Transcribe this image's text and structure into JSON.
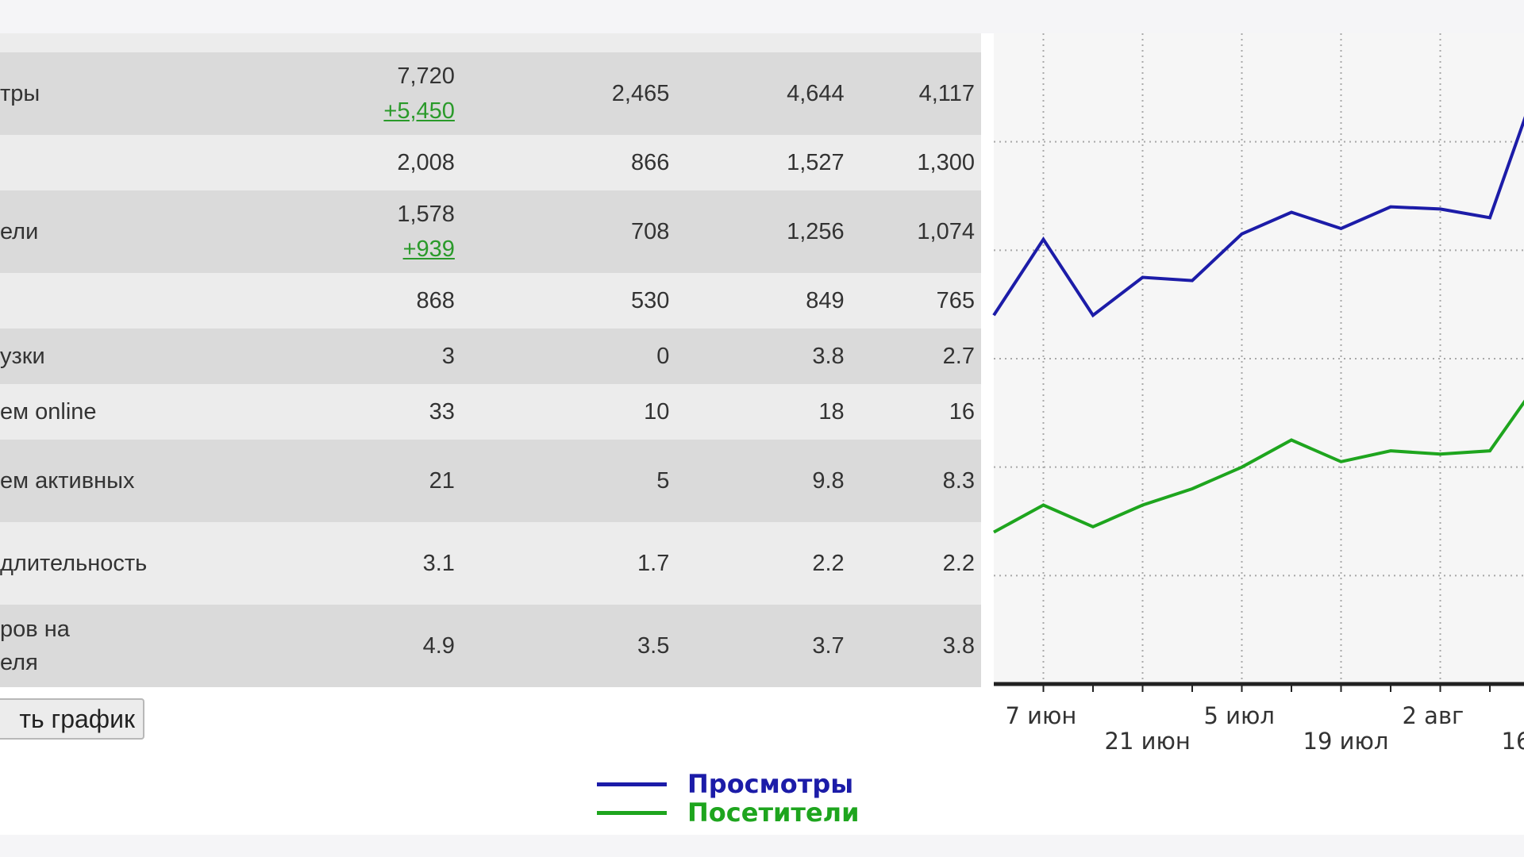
{
  "table": {
    "rows": [
      {
        "label": "тры",
        "v1": "7,720",
        "v1_delta": "+5,450",
        "v2": "2,465",
        "v3": "4,644",
        "v4": "4,117",
        "shade": "dark"
      },
      {
        "label": "",
        "v1": "2,008",
        "v1_delta": "",
        "v2": "866",
        "v3": "1,527",
        "v4": "1,300",
        "shade": "light"
      },
      {
        "label": "ели",
        "v1": "1,578",
        "v1_delta": "+939",
        "v2": "708",
        "v3": "1,256",
        "v4": "1,074",
        "shade": "dark"
      },
      {
        "label": "",
        "v1": "868",
        "v1_delta": "",
        "v2": "530",
        "v3": "849",
        "v4": "765",
        "shade": "light"
      },
      {
        "label": "узки",
        "v1": "3",
        "v1_delta": "",
        "v2": "0",
        "v3": "3.8",
        "v4": "2.7",
        "shade": "dark"
      },
      {
        "label": "ем online",
        "v1": "33",
        "v1_delta": "",
        "v2": "10",
        "v3": "18",
        "v4": "16",
        "shade": "light"
      },
      {
        "label": "ем активных",
        "v1": "21",
        "v1_delta": "",
        "v2": "5",
        "v3": "9.8",
        "v4": "8.3",
        "shade": "dark"
      },
      {
        "label": "длительность",
        "v1": "3.1",
        "v1_delta": "",
        "v2": "1.7",
        "v3": "2.2",
        "v4": "2.2",
        "shade": "light"
      },
      {
        "label": "ров на\nеля",
        "v1": "4.9",
        "v1_delta": "",
        "v2": "3.5",
        "v3": "3.7",
        "v4": "3.8",
        "shade": "dark"
      }
    ]
  },
  "button": {
    "label": "ть график"
  },
  "legend": {
    "items": [
      {
        "label": "Просмотры",
        "color": "#1c1ca8"
      },
      {
        "label": "Посетители",
        "color": "#1ea51e"
      }
    ]
  },
  "chart_data": {
    "type": "line",
    "x_tick_labels": [
      "7 июн",
      "21 июн",
      "5 июл",
      "19 июл",
      "2 авг",
      "16"
    ],
    "series": [
      {
        "name": "Просмотры",
        "color": "#1c1ca8",
        "values": [
          3.4,
          4.1,
          3.4,
          3.75,
          3.72,
          4.15,
          4.35,
          4.2,
          4.4,
          4.38,
          4.3,
          5.6
        ]
      },
      {
        "name": "Посетители",
        "color": "#1ea51e",
        "values": [
          1.4,
          1.65,
          1.45,
          1.65,
          1.8,
          2.0,
          2.25,
          2.05,
          2.15,
          2.12,
          2.15,
          2.8
        ]
      }
    ],
    "ylim": [
      0,
      6
    ],
    "grid": true
  }
}
